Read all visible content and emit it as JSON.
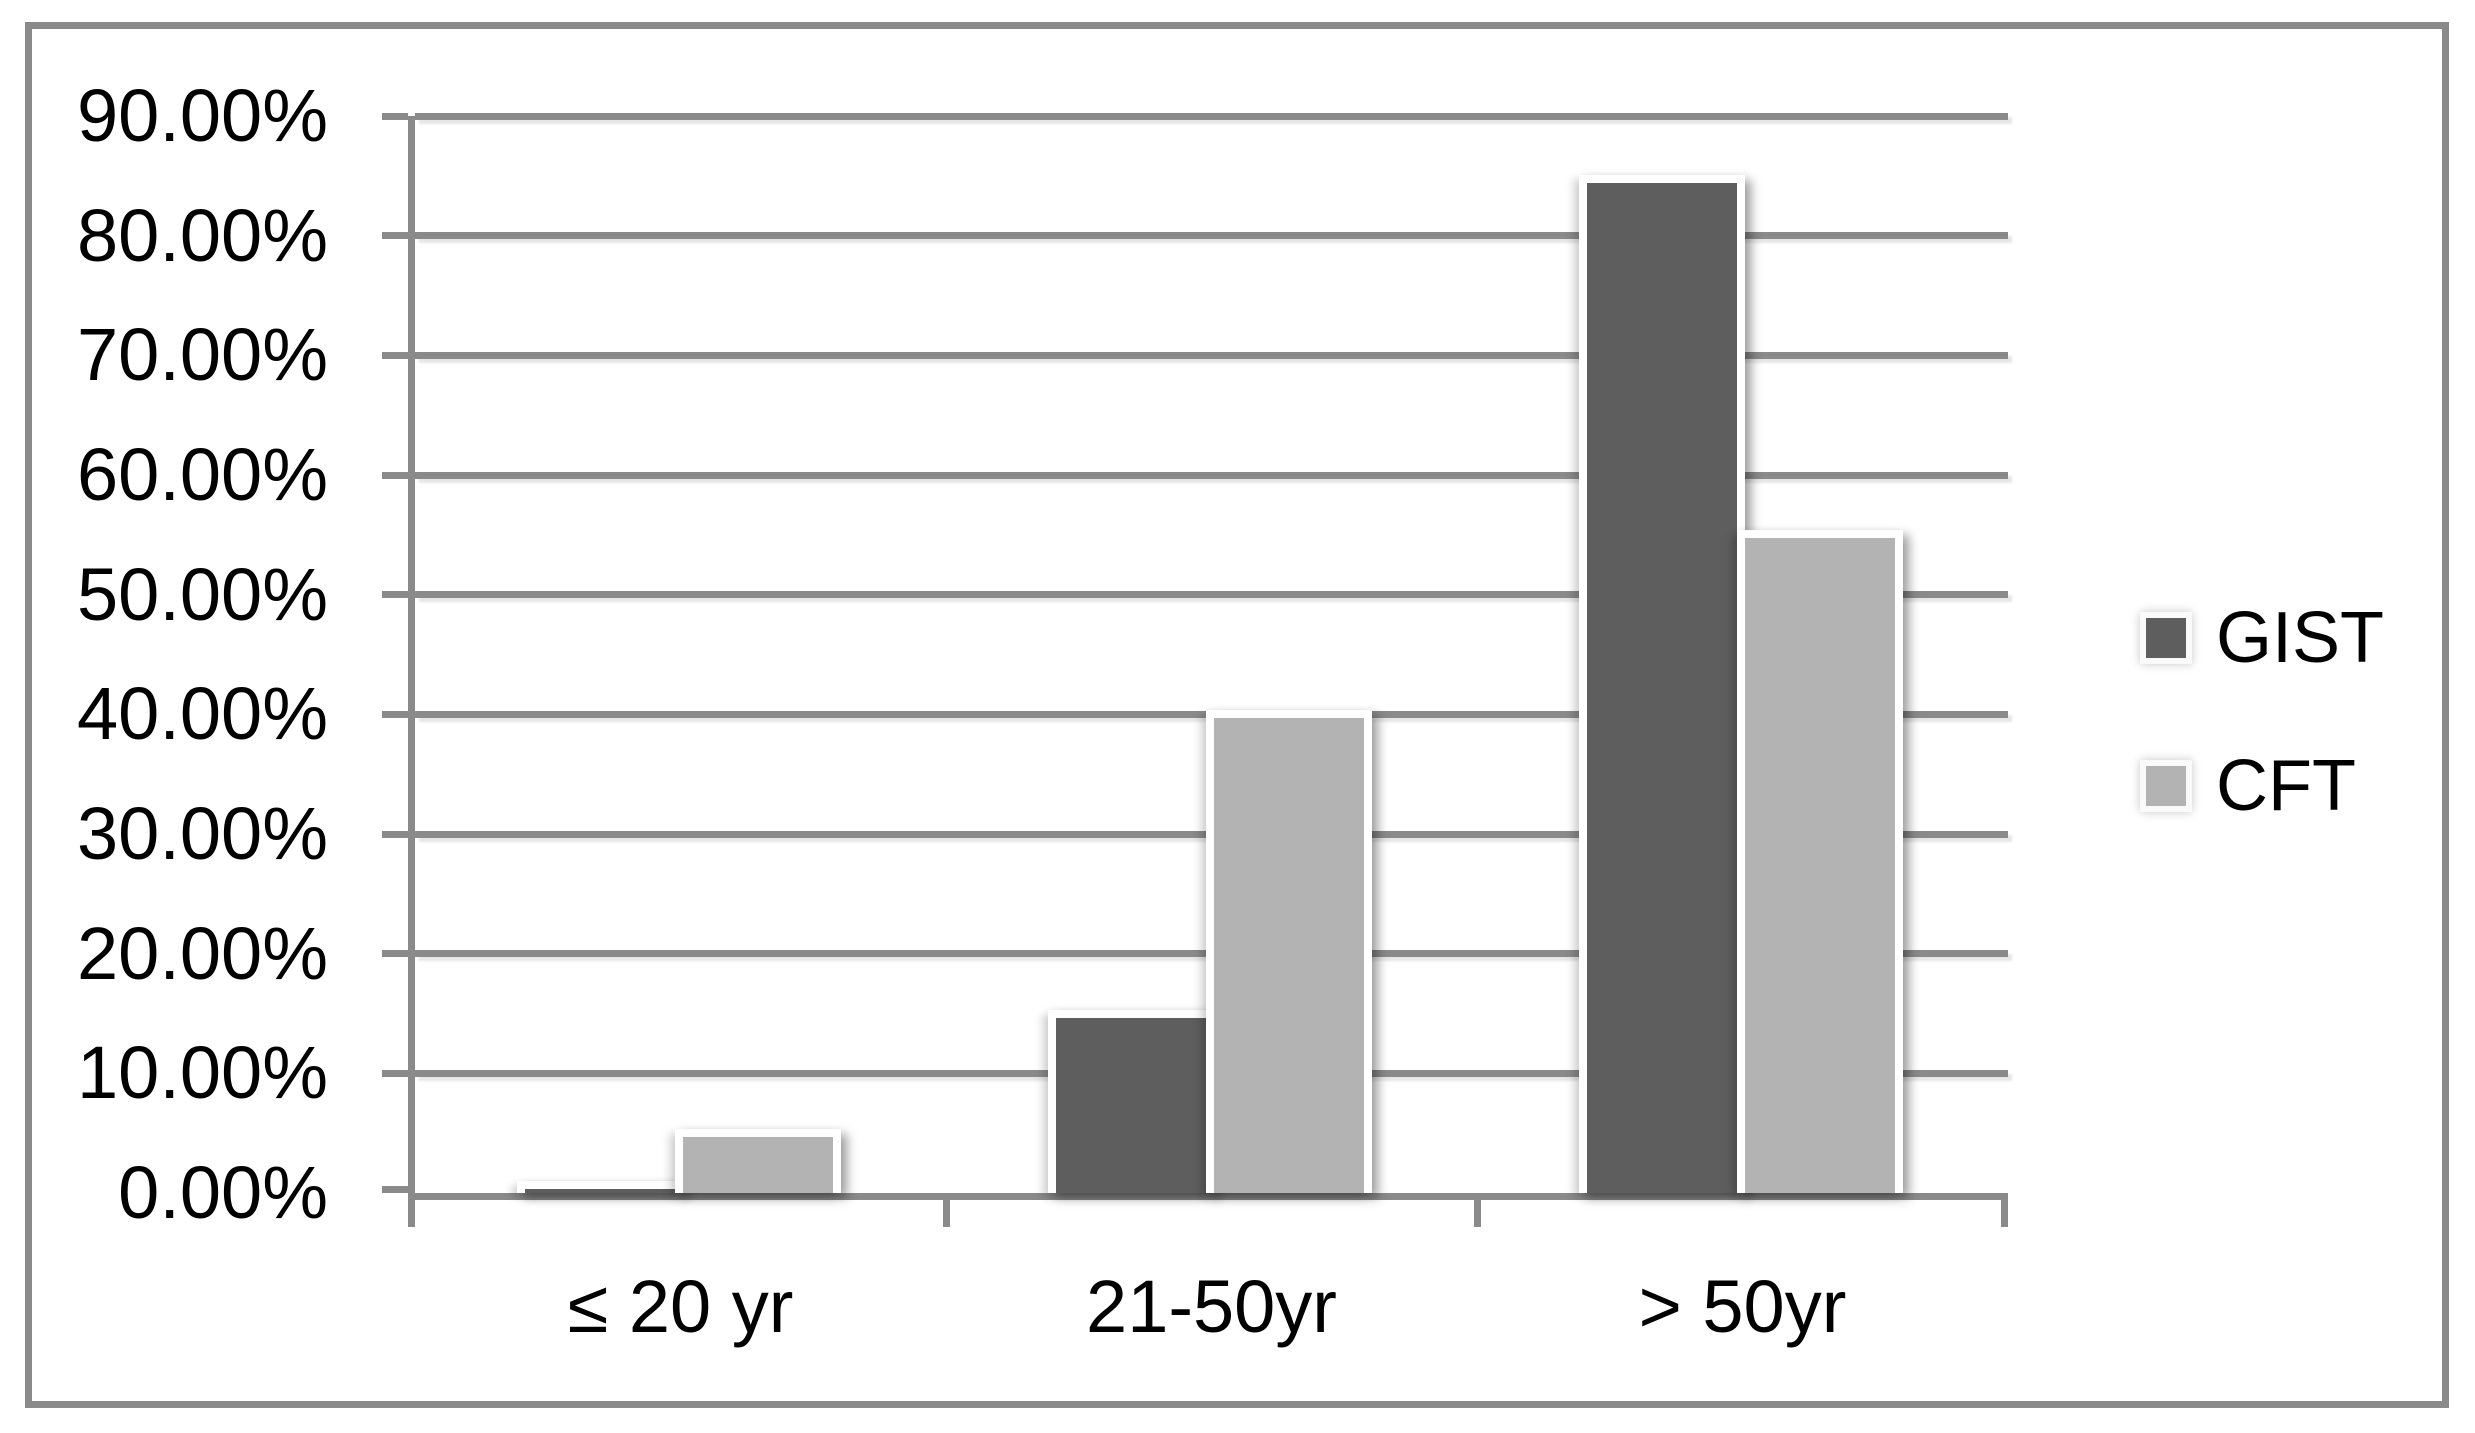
{
  "chart_data": {
    "type": "bar",
    "title": "",
    "categories": [
      "≤ 20 yr",
      "21-50yr",
      "> 50yr"
    ],
    "series": [
      {
        "name": "GIST",
        "color": "#5e5e5e",
        "values": [
          0.3,
          14.6,
          84.4
        ]
      },
      {
        "name": "CFT",
        "color": "#b3b3b3",
        "values": [
          4.7,
          39.7,
          54.7
        ]
      }
    ],
    "value_unit": "percent",
    "ylim": [
      0,
      90
    ],
    "ytick_step": 10,
    "ytick_labels": [
      "0.00%",
      "10.00%",
      "20.00%",
      "30.00%",
      "40.00%",
      "50.00%",
      "60.00%",
      "70.00%",
      "80.00%",
      "90.00%"
    ],
    "grid": true,
    "legend_position": "right",
    "colors": {
      "axis": "#8a8a8a",
      "frame": "#8a8a8a",
      "gridline": "#8a8a8a",
      "text": "#000000",
      "background": "#ffffff"
    }
  }
}
